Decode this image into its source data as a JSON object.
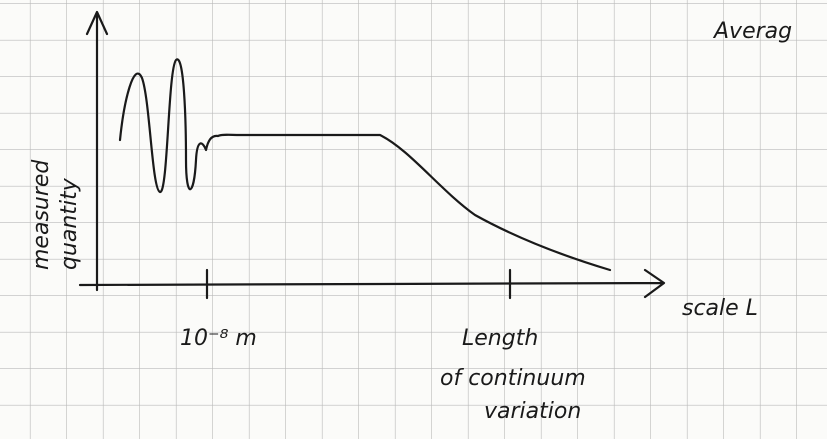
{
  "header": {
    "title": "Averag"
  },
  "axes": {
    "y_label": [
      "measured",
      "quantity"
    ],
    "x_label": "scale L"
  },
  "ticks": {
    "small": "10⁻⁸ m",
    "large": [
      "Length",
      "of continuum",
      "variation"
    ]
  }
}
